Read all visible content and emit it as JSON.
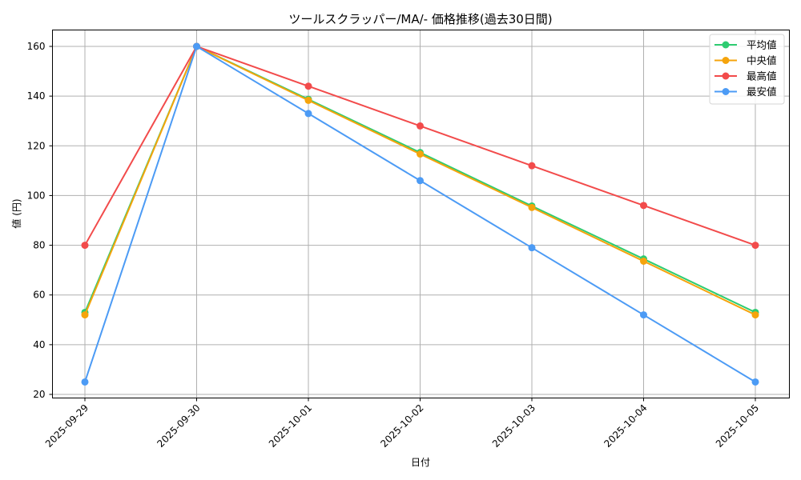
{
  "chart_data": {
    "type": "line",
    "title": "ツールスクラッパー/MA/- 価格推移(過去30日間)",
    "xlabel": "日付",
    "ylabel": "値 (円)",
    "categories": [
      "2025-09-29",
      "2025-09-30",
      "2025-10-01",
      "2025-10-02",
      "2025-10-03",
      "2025-10-04",
      "2025-10-05"
    ],
    "yticks": [
      20,
      40,
      60,
      80,
      100,
      120,
      140,
      160
    ],
    "ylim": [
      18,
      166
    ],
    "grid": true,
    "legend_position": "upper right",
    "series": [
      {
        "name": "平均値",
        "color": "#2ecc71",
        "values": [
          53,
          160,
          138.7,
          117.3,
          95.8,
          74.5,
          53
        ]
      },
      {
        "name": "中央値",
        "color": "#f5a40c",
        "values": [
          52,
          160,
          138.3,
          116.7,
          95.2,
          73.6,
          52
        ]
      },
      {
        "name": "最高値",
        "color": "#f24b4b",
        "values": [
          80,
          160,
          144,
          128,
          112,
          96,
          80
        ]
      },
      {
        "name": "最安値",
        "color": "#4c9bf5",
        "values": [
          25,
          160,
          133,
          106,
          79,
          52,
          25
        ]
      }
    ]
  }
}
